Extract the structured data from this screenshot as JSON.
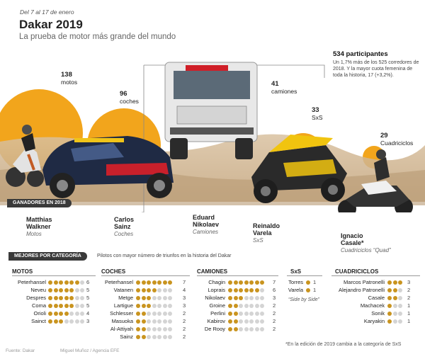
{
  "header": {
    "dates": "Del 7 al 17 de enero",
    "title": "Dakar 2019",
    "subtitle": "La prueba de motor más grande del mundo"
  },
  "summary": {
    "headline": "534 participantes",
    "description": "Un 1,7% más de los 525 corredores de 2018. Y la mayor cuota femenina de toda la historia, 17 (+3,2%)."
  },
  "participants": [
    {
      "value": "138",
      "label": "motos"
    },
    {
      "value": "96",
      "label": "coches"
    },
    {
      "value": "41",
      "label": "camiones"
    },
    {
      "value": "33",
      "label": "SxS"
    },
    {
      "value": "29",
      "label": "Cuadriciclos"
    }
  ],
  "winners_banner": "GANADORES EN 2018",
  "winners": [
    {
      "name_1": "Matthias",
      "name_2": "Walkner",
      "category": "Motos"
    },
    {
      "name_1": "Carlos",
      "name_2": "Sainz",
      "category": "Coches"
    },
    {
      "name_1": "Eduard",
      "name_2": "Nikolaev",
      "category": "Camiones"
    },
    {
      "name_1": "Reinaldo",
      "name_2": "Varela",
      "category": "SxS"
    },
    {
      "name_1": "Ignacio",
      "name_2": "Casale*",
      "category": "Cuadriciclos “Quad”"
    }
  ],
  "best_banner": "MEJORES POR CATEGORÍA",
  "best_note": "Pilotos con mayor número de triunfos en la historia del Dakar",
  "colors": {
    "accent": "#f2a51c",
    "dot_on": "#c9941f",
    "dot_off": "#d4d4d4",
    "banner": "#3a3a3a"
  },
  "categories": [
    {
      "title": "MOTOS",
      "rows": [
        {
          "name": "Peterhansel",
          "wins": 6
        },
        {
          "name": "Neveu",
          "wins": 5
        },
        {
          "name": "Despres",
          "wins": 5
        },
        {
          "name": "Coma",
          "wins": 5
        },
        {
          "name": "Orioli",
          "wins": 4
        },
        {
          "name": "Sainct",
          "wins": 3
        }
      ]
    },
    {
      "title": "COCHES",
      "rows": [
        {
          "name": "Peterhansel",
          "wins": 7
        },
        {
          "name": "Vatanen",
          "wins": 4
        },
        {
          "name": "Metge",
          "wins": 3
        },
        {
          "name": "Lartigue",
          "wins": 3
        },
        {
          "name": "Schlesser",
          "wins": 2
        },
        {
          "name": "Masuoka",
          "wins": 2
        },
        {
          "name": "Al-Attiyah",
          "wins": 2
        },
        {
          "name": "Sainz",
          "wins": 2
        }
      ]
    },
    {
      "title": "CAMIONES",
      "rows": [
        {
          "name": "Chagin",
          "wins": 7
        },
        {
          "name": "Loprais",
          "wins": 6
        },
        {
          "name": "Nikolaev",
          "wins": 3
        },
        {
          "name": "Groine",
          "wins": 2
        },
        {
          "name": "Perlini",
          "wins": 2
        },
        {
          "name": "Kabirov",
          "wins": 2
        },
        {
          "name": "De Rooy",
          "wins": 2
        }
      ]
    },
    {
      "title": "SxS",
      "rows": [
        {
          "name": "Torres",
          "wins": 1
        },
        {
          "name": "Varela",
          "wins": 1
        }
      ]
    },
    {
      "title": "CUADRICICLOS",
      "rows": [
        {
          "name": "Marcos Patronelli",
          "wins": 3
        },
        {
          "name": "Alejandro Patronelli",
          "wins": 2
        },
        {
          "name": "Casale",
          "wins": 2
        },
        {
          "name": "Machacek",
          "wins": 1
        },
        {
          "name": "Sonik",
          "wins": 1
        },
        {
          "name": "Karyakin",
          "wins": 1
        }
      ]
    }
  ],
  "sbs_note": "“Side by Side”",
  "footnote": "*En la edición de 2019 cambia a la categoría de SxS",
  "source": "Fuente: Dakar",
  "credit": "Miguel Muñoz / Agencia EFE"
}
